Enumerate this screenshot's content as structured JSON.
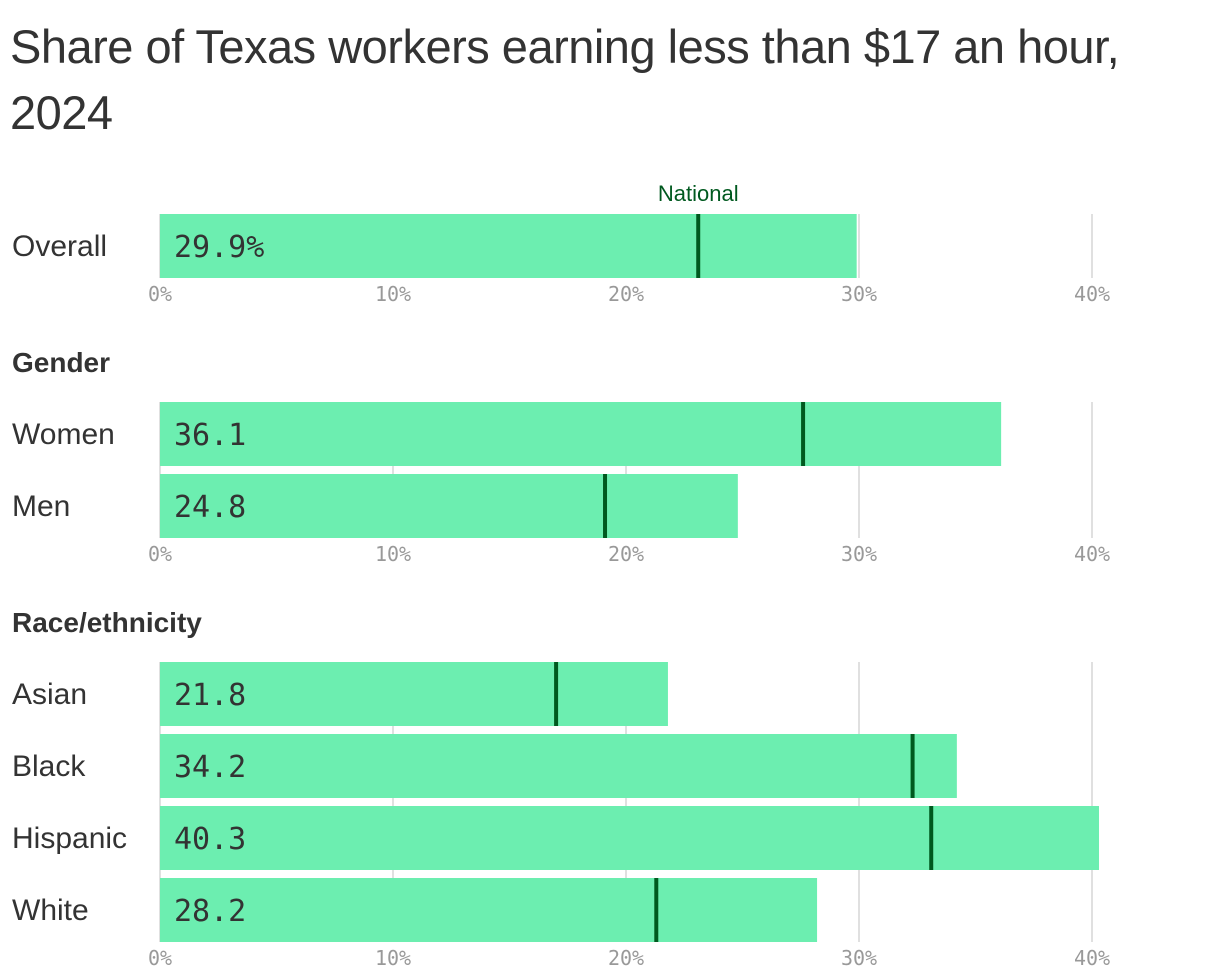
{
  "chart_data": {
    "type": "bar",
    "orientation": "horizontal",
    "title": "Share of Texas workers earning less than $17 an hour, 2024",
    "xlim": [
      0,
      40
    ],
    "x_ticks": [
      "0%",
      "10%",
      "20%",
      "30%",
      "40%"
    ],
    "grid": true,
    "marker_label": "National",
    "colors": {
      "bar": "#6ceeb0",
      "marker": "#00591f",
      "grid": "#e0e0e0",
      "text": "#333333",
      "tick": "#999999"
    },
    "groups": [
      {
        "heading": "",
        "show_marker_label": true,
        "categories": [
          "Overall"
        ],
        "values": [
          29.9
        ],
        "value_labels": [
          "29.9%"
        ],
        "national": [
          23.1
        ]
      },
      {
        "heading": "Gender",
        "show_marker_label": false,
        "categories": [
          "Women",
          "Men"
        ],
        "values": [
          36.1,
          24.8
        ],
        "value_labels": [
          "36.1",
          "24.8"
        ],
        "national": [
          27.6,
          19.1
        ]
      },
      {
        "heading": "Race/ethnicity",
        "show_marker_label": false,
        "categories": [
          "Asian",
          "Black",
          "Hispanic",
          "White"
        ],
        "values": [
          21.8,
          34.2,
          40.3,
          28.2
        ],
        "value_labels": [
          "21.8",
          "34.2",
          "40.3",
          "28.2"
        ],
        "national": [
          17.0,
          32.3,
          33.1,
          21.3
        ]
      }
    ]
  }
}
